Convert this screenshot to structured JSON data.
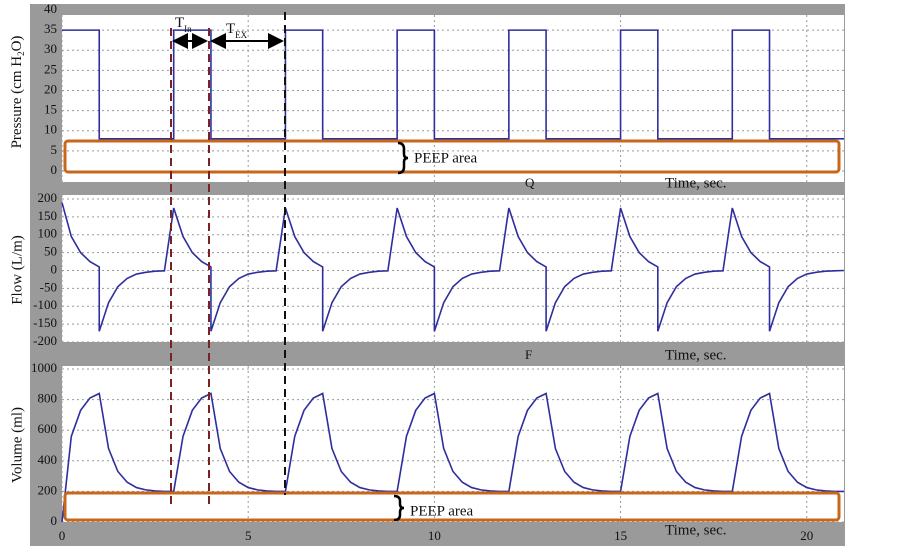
{
  "chart_data": [
    {
      "type": "line",
      "y_label": [
        "Pressure (cm H",
        "2",
        "O)"
      ],
      "color": "#2e2e9e",
      "xlim": [
        0,
        21
      ],
      "ylim": [
        0,
        40
      ],
      "yticks": [
        0,
        5,
        10,
        15,
        20,
        25,
        30,
        35,
        40
      ],
      "grid": true,
      "x": [
        0,
        1,
        1,
        3,
        3,
        4,
        4,
        6,
        6,
        7,
        7,
        9,
        9,
        10,
        10,
        12,
        12,
        13,
        13,
        15,
        15,
        16,
        16,
        18,
        18,
        19,
        19,
        21
      ],
      "values": [
        35,
        35,
        8,
        8,
        35,
        35,
        8,
        8,
        35,
        35,
        8,
        8,
        35,
        35,
        8,
        8,
        35,
        35,
        8,
        8,
        35,
        35,
        8,
        8,
        35,
        35,
        8,
        8
      ],
      "annotations": {
        "t_in": [
          "T",
          "In"
        ],
        "t_ex": [
          "T",
          "EX"
        ],
        "peep": "PEEP area",
        "panel": "Q",
        "time": "Time, sec."
      }
    },
    {
      "type": "line",
      "y_label": [
        "Flow (L/m)"
      ],
      "color": "#2e2e9e",
      "xlim": [
        0,
        21
      ],
      "ylim": [
        -200,
        200
      ],
      "yticks": [
        -200,
        -150,
        -100,
        -50,
        0,
        50,
        100,
        150,
        200
      ],
      "grid": true,
      "x": [
        0,
        0.25,
        0.5,
        0.75,
        1,
        1,
        1.25,
        1.5,
        1.75,
        2,
        2.25,
        2.5,
        2.75,
        3,
        3.25,
        3.5,
        3.75,
        4,
        4,
        4.25,
        4.5,
        4.75,
        5,
        5.25,
        5.5,
        5.75,
        6,
        6.25,
        6.5,
        6.75,
        7,
        7,
        7.25,
        7.5,
        7.75,
        8,
        8.25,
        8.5,
        8.75,
        9,
        9.25,
        9.5,
        9.75,
        10,
        10,
        10.25,
        10.5,
        10.75,
        11,
        11.25,
        11.5,
        11.75,
        12,
        12.25,
        12.5,
        12.75,
        13,
        13,
        13.25,
        13.5,
        13.75,
        14,
        14.25,
        14.5,
        14.75,
        15,
        15.25,
        15.5,
        15.75,
        16,
        16,
        16.25,
        16.5,
        16.75,
        17,
        17.25,
        17.5,
        17.75,
        18,
        18.25,
        18.5,
        18.75,
        19,
        19,
        19.25,
        19.5,
        19.75,
        20,
        20.25,
        20.5,
        20.75,
        21
      ],
      "values": [
        190,
        95,
        50,
        25,
        10,
        -170,
        -90,
        -45,
        -22,
        -10,
        -5,
        -2,
        -1,
        175,
        95,
        50,
        25,
        10,
        -170,
        -90,
        -45,
        -22,
        -10,
        -5,
        -2,
        -1,
        175,
        95,
        50,
        25,
        10,
        -170,
        -90,
        -45,
        -22,
        -10,
        -5,
        -2,
        -1,
        175,
        95,
        50,
        25,
        10,
        -170,
        -90,
        -45,
        -22,
        -10,
        -5,
        -2,
        -1,
        175,
        95,
        50,
        25,
        10,
        -170,
        -90,
        -45,
        -22,
        -10,
        -5,
        -2,
        -1,
        175,
        95,
        50,
        25,
        10,
        -170,
        -90,
        -45,
        -22,
        -10,
        -5,
        -2,
        -1,
        175,
        95,
        50,
        25,
        10,
        -170,
        -90,
        -45,
        -22,
        -10,
        -5,
        -2,
        -1,
        0
      ],
      "annotations": {
        "panel": "F",
        "time": "Time, sec."
      }
    },
    {
      "type": "line",
      "y_label": [
        "Volume (ml)"
      ],
      "color": "#2e2e9e",
      "xlim": [
        0,
        21
      ],
      "ylim": [
        0,
        1000
      ],
      "yticks": [
        0,
        200,
        400,
        600,
        800,
        1000
      ],
      "xticks": [
        0,
        5,
        10,
        15,
        20
      ],
      "grid": true,
      "x": [
        0,
        0.25,
        0.5,
        0.75,
        1,
        1.25,
        1.5,
        1.75,
        2,
        2.25,
        2.5,
        2.75,
        3,
        3.25,
        3.5,
        3.75,
        4,
        4.25,
        4.5,
        4.75,
        5,
        5.25,
        5.5,
        5.75,
        6,
        6.25,
        6.5,
        6.75,
        7,
        7.25,
        7.5,
        7.75,
        8,
        8.25,
        8.5,
        8.75,
        9,
        9.25,
        9.5,
        9.75,
        10,
        10.25,
        10.5,
        10.75,
        11,
        11.25,
        11.5,
        11.75,
        12,
        12.25,
        12.5,
        12.75,
        13,
        13.25,
        13.5,
        13.75,
        14,
        14.25,
        14.5,
        14.75,
        15,
        15.25,
        15.5,
        15.75,
        16,
        16.25,
        16.5,
        16.75,
        17,
        17.25,
        17.5,
        17.75,
        18,
        18.25,
        18.5,
        18.75,
        19,
        19.25,
        19.5,
        19.75,
        20,
        20.25,
        20.5,
        20.75,
        21
      ],
      "values": [
        0,
        560,
        730,
        810,
        840,
        480,
        330,
        260,
        225,
        210,
        203,
        200,
        200,
        560,
        730,
        810,
        840,
        480,
        330,
        260,
        225,
        210,
        203,
        200,
        200,
        560,
        730,
        810,
        840,
        480,
        330,
        260,
        225,
        210,
        203,
        200,
        200,
        560,
        730,
        810,
        840,
        480,
        330,
        260,
        225,
        210,
        203,
        200,
        200,
        560,
        730,
        810,
        840,
        480,
        330,
        260,
        225,
        210,
        203,
        200,
        200,
        560,
        730,
        810,
        840,
        480,
        330,
        260,
        225,
        210,
        203,
        200,
        200,
        560,
        730,
        810,
        840,
        480,
        330,
        260,
        225,
        210,
        203,
        200,
        200
      ],
      "annotations": {
        "peep": "PEEP area",
        "time": "Time, sec."
      }
    }
  ]
}
